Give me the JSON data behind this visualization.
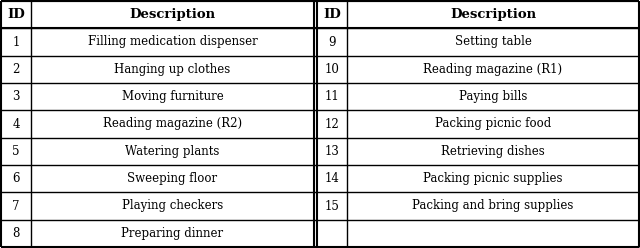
{
  "left_ids": [
    "1",
    "2",
    "3",
    "4",
    "5",
    "6",
    "7",
    "8"
  ],
  "left_descriptions": [
    "Filling medication dispenser",
    "Hanging up clothes",
    "Moving furniture",
    "Reading magazine (R2)",
    "Watering plants",
    "Sweeping floor",
    "Playing checkers",
    "Preparing dinner"
  ],
  "right_ids": [
    "9",
    "10",
    "11",
    "12",
    "13",
    "14",
    "15",
    ""
  ],
  "right_descriptions": [
    "Setting table",
    "Reading magazine (R1)",
    "Paying bills",
    "Packing picnic food",
    "Retrieving dishes",
    "Packing picnic supplies",
    "Packing and bring supplies",
    ""
  ],
  "header_id": "ID",
  "header_desc": "Description",
  "bg_color": "#ffffff",
  "text_color": "#000000",
  "border_color": "#000000",
  "font_size": 8.5,
  "header_font_size": 9.5
}
